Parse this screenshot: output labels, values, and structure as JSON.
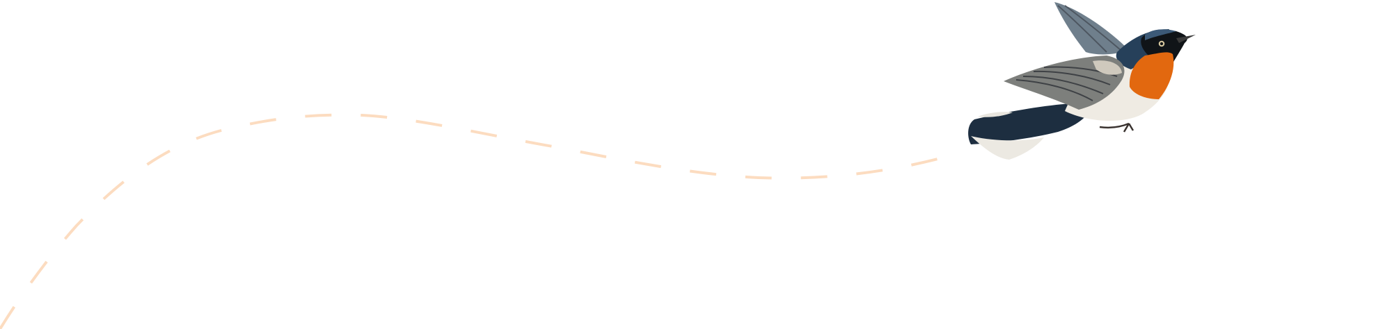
{
  "illustration": {
    "subject": "bird-in-flight",
    "colors": {
      "flight_path": "#fcdcc0",
      "background": "#ffffff",
      "bird_back": "#26405a",
      "bird_throat": "#e2680f",
      "bird_belly": "#efebe3",
      "bird_wing": "#7d7f7c"
    }
  }
}
